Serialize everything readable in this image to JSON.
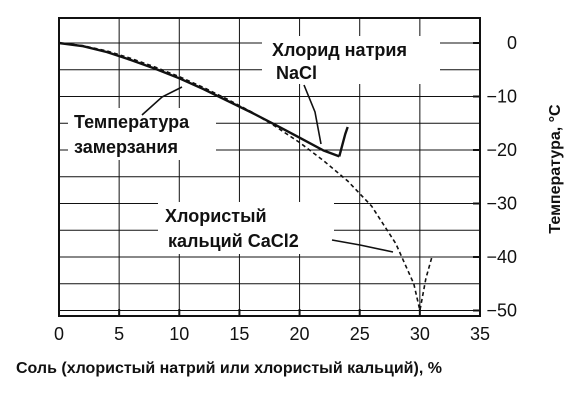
{
  "chart_data": {
    "type": "line",
    "title": "",
    "xlabel": "Соль (хлористый натрий или хлористый кальций), %",
    "ylabel": "Температура, °С",
    "xlim": [
      0,
      35
    ],
    "ylim": [
      -52,
      3
    ],
    "x_ticks": [
      "0",
      "5",
      "10",
      "15",
      "20",
      "25",
      "30",
      "35"
    ],
    "y_ticks": [
      "0",
      "−10",
      "−20",
      "−30",
      "−40",
      "−50"
    ],
    "y_tick_values": [
      0,
      -10,
      -20,
      -30,
      -40,
      -50
    ],
    "y_axis_side": "right",
    "grid": true,
    "series": [
      {
        "name": "Хлорид натрия NaCl",
        "style": "solid",
        "x": [
          0,
          2,
          4,
          6,
          8,
          10,
          12,
          14,
          16,
          18,
          20,
          22,
          23.3
        ],
        "y": [
          0,
          -0.6,
          -1.7,
          -3.2,
          -4.8,
          -6.6,
          -8.6,
          -10.8,
          -13.0,
          -15.3,
          -17.7,
          -20.1,
          -21.2
        ]
      },
      {
        "name": "Хлористый кальций CaCl2",
        "style": "dashed",
        "x": [
          0,
          2,
          4,
          6,
          8,
          10,
          12,
          14,
          16,
          18,
          20,
          22,
          24,
          26,
          28,
          29.5,
          30,
          30.5,
          31
        ],
        "y": [
          0,
          -0.5,
          -1.5,
          -2.9,
          -4.5,
          -6.3,
          -8.3,
          -10.5,
          -12.9,
          -15.6,
          -18.6,
          -22.0,
          -25.8,
          -30.5,
          -37.5,
          -45.0,
          -50.0,
          -44.0,
          -40.0
        ]
      }
    ],
    "annotations": [
      {
        "lines": [
          "Хлорид натрия",
          "NaCl"
        ]
      },
      {
        "lines": [
          "Температура",
          "замерзания"
        ]
      },
      {
        "lines": [
          "Хлористый",
          "кальций CaCl2"
        ]
      }
    ],
    "colors": {
      "line": "#111111",
      "grid": "#111111",
      "background": "#ffffff"
    }
  }
}
